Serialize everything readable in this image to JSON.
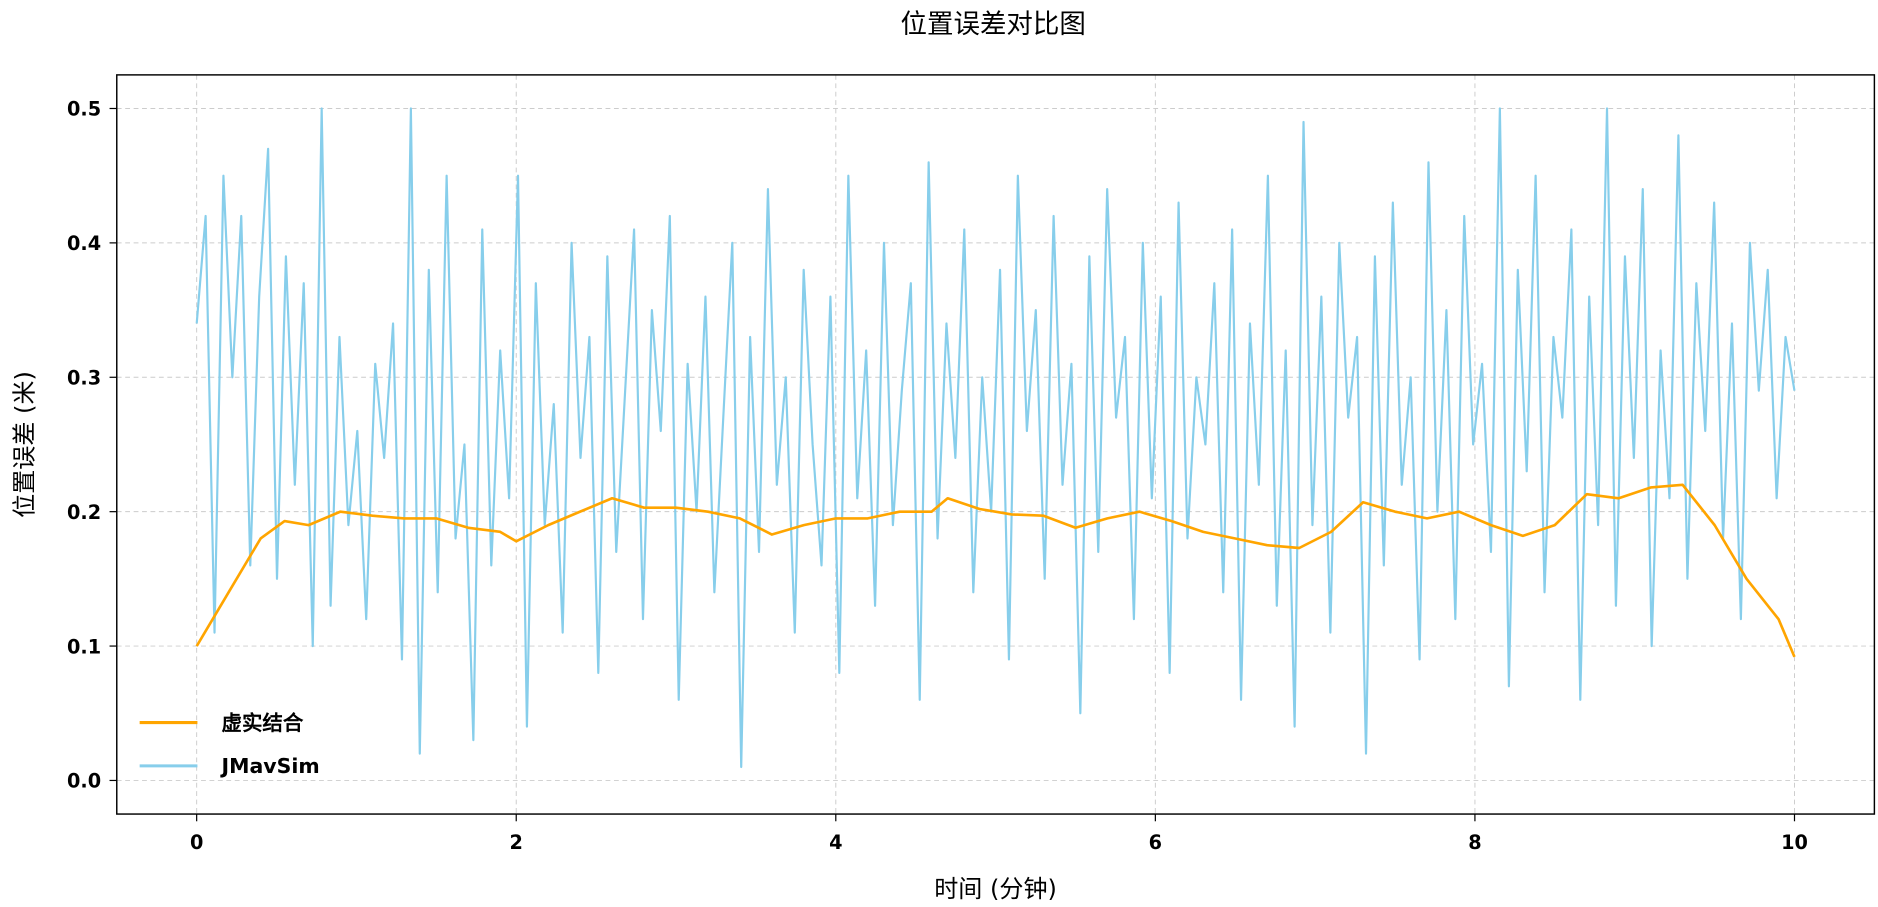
{
  "chart_data": {
    "type": "line",
    "title": "位置误差对比图",
    "xlabel": "时间 (分钟)",
    "ylabel": "位置误差 (米)",
    "xlim": [
      -0.5,
      10.5
    ],
    "ylim": [
      -0.025,
      0.525
    ],
    "xticks": [
      0,
      2,
      4,
      6,
      8,
      10
    ],
    "xtick_labels": [
      "0",
      "2",
      "4",
      "6",
      "8",
      "10"
    ],
    "yticks": [
      0.0,
      0.1,
      0.2,
      0.3,
      0.4,
      0.5
    ],
    "ytick_labels": [
      "0.0",
      "0.1",
      "0.2",
      "0.3",
      "0.4",
      "0.5"
    ],
    "grid": true,
    "legend_position": "lower-left",
    "series": [
      {
        "name": "虚实结合",
        "color": "#FFA500",
        "x": [
          0,
          0.2,
          0.4,
          0.55,
          0.7,
          0.9,
          1.1,
          1.3,
          1.5,
          1.7,
          1.9,
          2.0,
          2.2,
          2.4,
          2.6,
          2.8,
          3.0,
          3.2,
          3.4,
          3.6,
          3.8,
          4.0,
          4.2,
          4.4,
          4.6,
          4.7,
          4.9,
          5.1,
          5.3,
          5.5,
          5.7,
          5.9,
          6.1,
          6.3,
          6.5,
          6.7,
          6.9,
          7.1,
          7.3,
          7.5,
          7.7,
          7.9,
          8.1,
          8.3,
          8.5,
          8.7,
          8.9,
          9.1,
          9.3,
          9.5,
          9.7,
          9.9,
          10
        ],
        "y": [
          0.1,
          0.14,
          0.18,
          0.193,
          0.19,
          0.2,
          0.197,
          0.195,
          0.195,
          0.188,
          0.185,
          0.178,
          0.19,
          0.2,
          0.21,
          0.203,
          0.203,
          0.2,
          0.195,
          0.183,
          0.19,
          0.195,
          0.195,
          0.2,
          0.2,
          0.21,
          0.202,
          0.198,
          0.197,
          0.188,
          0.195,
          0.2,
          0.193,
          0.185,
          0.18,
          0.175,
          0.173,
          0.185,
          0.207,
          0.2,
          0.195,
          0.2,
          0.19,
          0.182,
          0.19,
          0.213,
          0.21,
          0.218,
          0.22,
          0.19,
          0.15,
          0.12,
          0.092
        ]
      },
      {
        "name": "JMavSim",
        "color": "#87CEEB",
        "x_range": [
          0,
          10
        ],
        "y": [
          0.34,
          0.42,
          0.11,
          0.45,
          0.3,
          0.42,
          0.16,
          0.36,
          0.47,
          0.15,
          0.39,
          0.22,
          0.37,
          0.1,
          0.5,
          0.13,
          0.33,
          0.19,
          0.26,
          0.12,
          0.31,
          0.24,
          0.34,
          0.09,
          0.5,
          0.02,
          0.38,
          0.14,
          0.45,
          0.18,
          0.25,
          0.03,
          0.41,
          0.16,
          0.32,
          0.21,
          0.45,
          0.04,
          0.37,
          0.19,
          0.28,
          0.11,
          0.4,
          0.24,
          0.33,
          0.08,
          0.39,
          0.17,
          0.29,
          0.41,
          0.12,
          0.35,
          0.26,
          0.42,
          0.06,
          0.31,
          0.2,
          0.36,
          0.14,
          0.27,
          0.4,
          0.01,
          0.33,
          0.17,
          0.44,
          0.22,
          0.3,
          0.11,
          0.38,
          0.25,
          0.16,
          0.36,
          0.08,
          0.45,
          0.21,
          0.32,
          0.13,
          0.4,
          0.19,
          0.29,
          0.37,
          0.06,
          0.46,
          0.18,
          0.34,
          0.24,
          0.41,
          0.14,
          0.3,
          0.2,
          0.38,
          0.09,
          0.45,
          0.26,
          0.35,
          0.15,
          0.42,
          0.22,
          0.31,
          0.05,
          0.39,
          0.17,
          0.44,
          0.27,
          0.33,
          0.12,
          0.4,
          0.21,
          0.36,
          0.08,
          0.43,
          0.18,
          0.3,
          0.25,
          0.37,
          0.14,
          0.41,
          0.06,
          0.34,
          0.22,
          0.45,
          0.13,
          0.32,
          0.04,
          0.49,
          0.19,
          0.36,
          0.11,
          0.4,
          0.27,
          0.33,
          0.02,
          0.39,
          0.16,
          0.43,
          0.22,
          0.3,
          0.09,
          0.46,
          0.2,
          0.35,
          0.12,
          0.42,
          0.25,
          0.31,
          0.17,
          0.5,
          0.07,
          0.38,
          0.23,
          0.45,
          0.14,
          0.33,
          0.27,
          0.41,
          0.06,
          0.36,
          0.19,
          0.5,
          0.13,
          0.39,
          0.24,
          0.44,
          0.1,
          0.32,
          0.21,
          0.48,
          0.15,
          0.37,
          0.26,
          0.43,
          0.18,
          0.34,
          0.12,
          0.4,
          0.29,
          0.38,
          0.21,
          0.33,
          0.29
        ]
      }
    ]
  }
}
